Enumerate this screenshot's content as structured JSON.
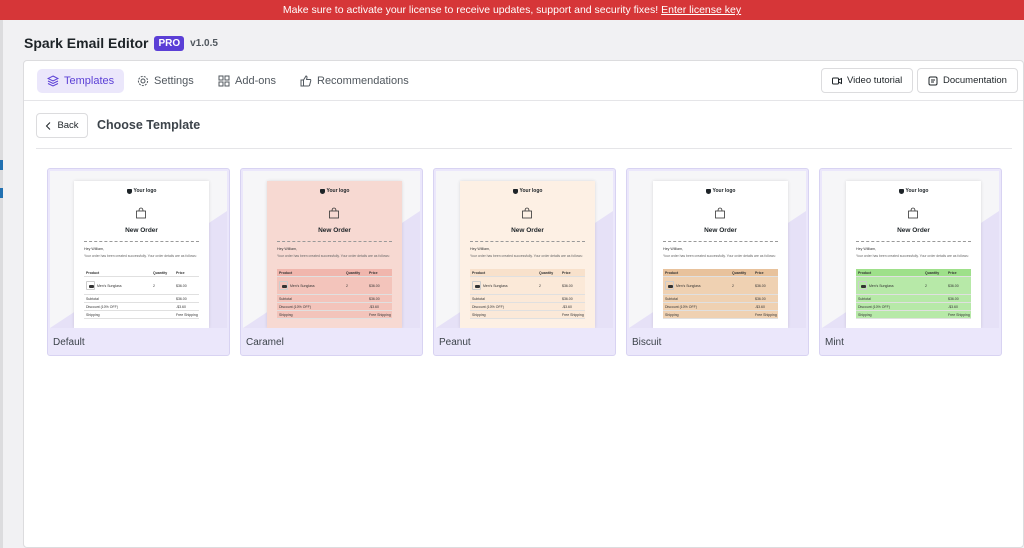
{
  "notice": {
    "message": "Make sure to activate your license to receive updates, support and security fixes!",
    "link_label": "Enter license key"
  },
  "app": {
    "title": "Spark Email Editor",
    "badge": "PRO",
    "version": "v1.0.5"
  },
  "nav": {
    "tabs": [
      {
        "label": "Templates",
        "icon": "layers-icon",
        "active": true
      },
      {
        "label": "Settings",
        "icon": "gear-icon",
        "active": false
      },
      {
        "label": "Add-ons",
        "icon": "grid-icon",
        "active": false
      },
      {
        "label": "Recommendations",
        "icon": "thumbs-up-icon",
        "active": false
      }
    ],
    "video_tutorial": "Video tutorial",
    "documentation": "Documentation"
  },
  "page": {
    "back_label": "Back",
    "title": "Choose Template"
  },
  "email_preview": {
    "logo": "Your logo",
    "heading": "New Order",
    "greeting": "Hey William,",
    "body": "Your order has been created successfully. Your order details are as follows:",
    "col_product": "Product",
    "col_quantity": "Quantity",
    "col_price": "Price",
    "item_name": "Men's Sunglass",
    "item_qty": "2",
    "item_price": "$36.00",
    "subtotal_label": "Subtotal",
    "subtotal_value": "$36.00",
    "discount_label": "Discount (10% OFF)",
    "discount_value": "-$3.60",
    "shipping_label": "Shipping",
    "shipping_value": "Free Shipping"
  },
  "templates": [
    {
      "name": "Default",
      "accent": "#ffffff",
      "header": "#ffffff",
      "row": "#ffffff"
    },
    {
      "name": "Caramel",
      "accent": "#f7d9d2",
      "header": "#f0b6ad",
      "row": "#f3c4bb"
    },
    {
      "name": "Peanut",
      "accent": "#fdf0e4",
      "header": "#f8e1cb",
      "row": "#fbe9d8"
    },
    {
      "name": "Biscuit",
      "accent": "#ffffff",
      "header": "#e8c29c",
      "row": "#efd1b2"
    },
    {
      "name": "Mint",
      "accent": "#ffffff",
      "header": "#9ee08a",
      "row": "#b7e9a8"
    }
  ]
}
